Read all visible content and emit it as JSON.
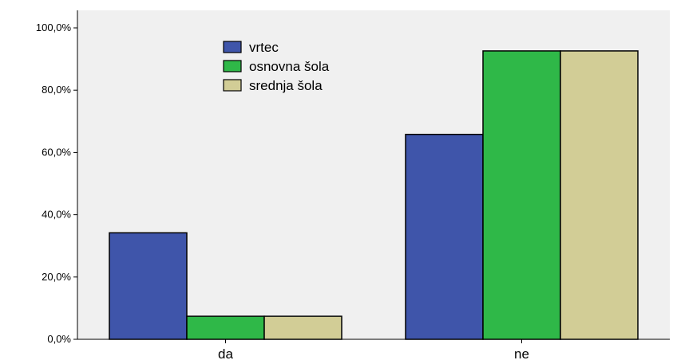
{
  "chart_data": {
    "type": "bar",
    "categories": [
      "da",
      "ne"
    ],
    "series": [
      {
        "name": "vrtec",
        "values": [
          34.2,
          65.8
        ],
        "color": "#3f55aa"
      },
      {
        "name": "osnovna šola",
        "values": [
          7.4,
          92.6
        ],
        "color": "#2fb848"
      },
      {
        "name": "srednja šola",
        "values": [
          7.4,
          92.6
        ],
        "color": "#d2cd96"
      }
    ],
    "ylim": [
      0,
      100
    ],
    "yticks": [
      0,
      20,
      40,
      60,
      80,
      100
    ],
    "ytick_labels": [
      "0,0%",
      "20,0%",
      "40,0%",
      "60,0%",
      "80,0%",
      "100,0%"
    ],
    "grid": false,
    "legend_position": "top-left",
    "plot_background": "#f0f0f0"
  }
}
